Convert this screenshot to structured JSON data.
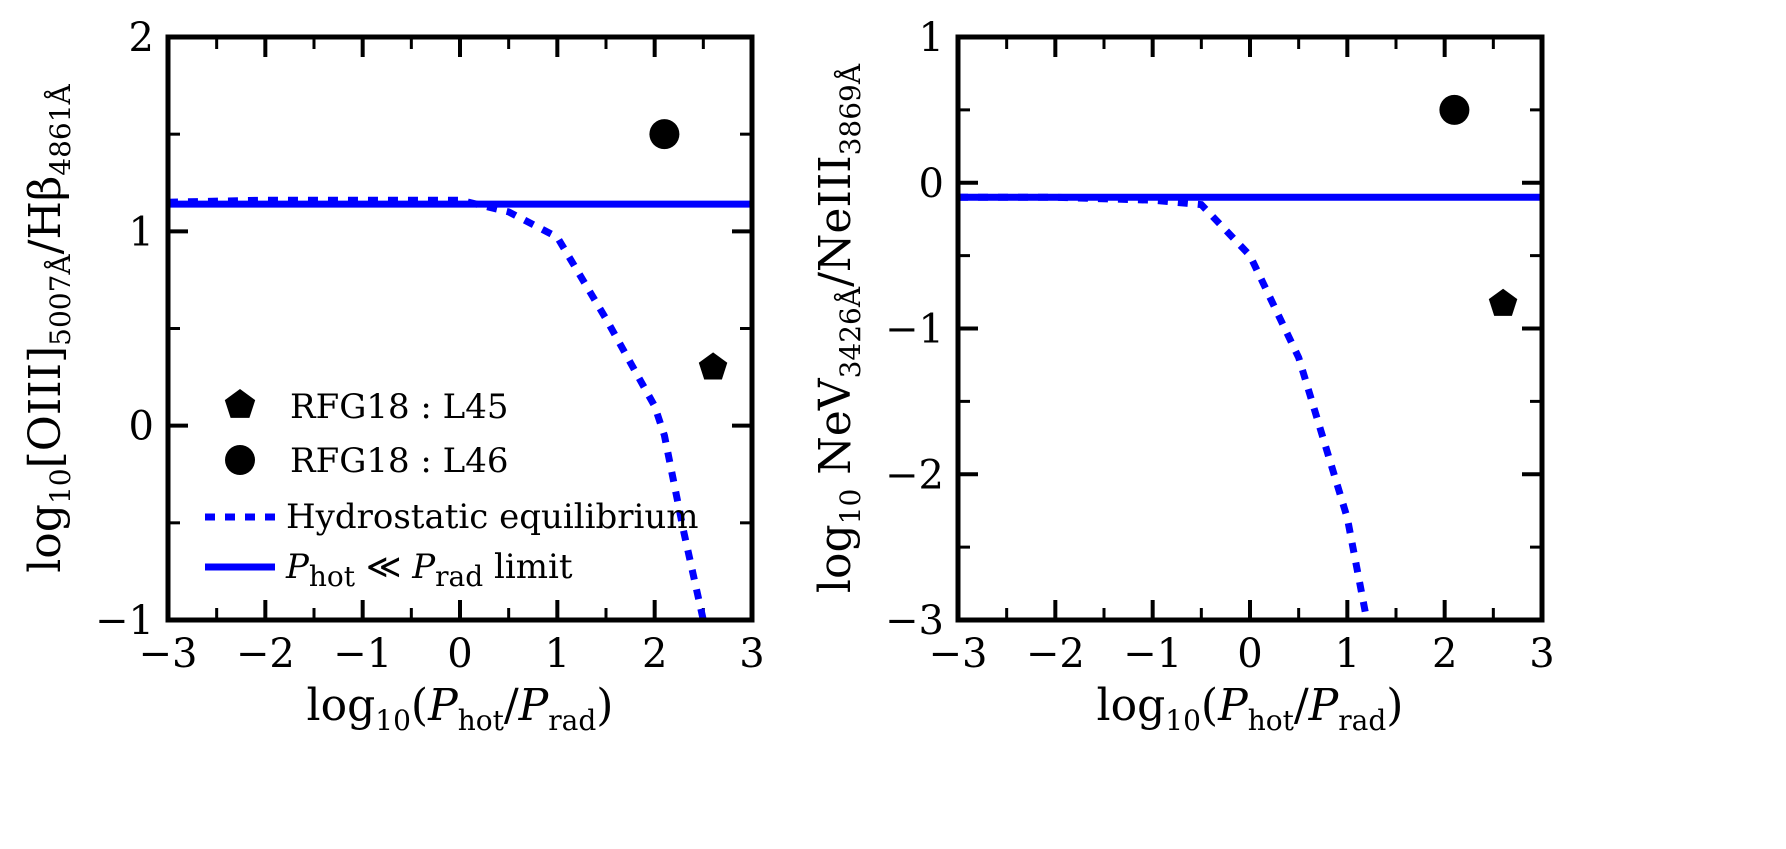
{
  "colors": {
    "line": "#0000ff",
    "marker": "#000000",
    "axis": "#000000"
  },
  "chart_data": [
    {
      "type": "line",
      "panel": "left",
      "xlabel": "log10(Phot/Prad)",
      "ylabel": "log10[OIII]5007Å/Hβ4861Å",
      "xlabel_parts": {
        "pre": "log",
        "pre_sub": "10",
        "open": "(",
        "p1": "P",
        "p1_sub": "hot",
        "slash": "/",
        "p2": "P",
        "p2_sub": "rad",
        "close": ")"
      },
      "ylabel_parts": {
        "pre": "log",
        "pre_sub": "10",
        "a": "[OIII]",
        "a_sub": "5007Å",
        "b": "/Hβ",
        "b_sub": "4861Å"
      },
      "xlim": [
        -3,
        3
      ],
      "ylim": [
        -1,
        2
      ],
      "xticks": [
        -3,
        -2,
        -1,
        0,
        1,
        2,
        3
      ],
      "xtick_labels": [
        "−3",
        "−2",
        "−1",
        "0",
        "1",
        "2",
        "3"
      ],
      "yticks": [
        -1,
        0,
        1,
        2
      ],
      "ytick_labels": [
        "−1",
        "0",
        "1",
        "2"
      ],
      "series": [
        {
          "name": "Hydrostatic equilibrium",
          "style": "dotted",
          "x": [
            -3,
            -2,
            -1,
            0,
            0.5,
            1,
            1.5,
            2,
            2.1,
            2.3,
            2.5
          ],
          "y": [
            1.15,
            1.16,
            1.16,
            1.16,
            1.1,
            0.97,
            0.55,
            0.1,
            -0.05,
            -0.55,
            -1.0
          ]
        },
        {
          "name": "Phot ≪ Prad limit",
          "style": "solid",
          "x": [
            -3,
            3
          ],
          "y": [
            1.14,
            1.14
          ]
        }
      ],
      "points": [
        {
          "name": "RFG18:L45",
          "marker": "pentagon",
          "x": 2.6,
          "y": 0.3
        },
        {
          "name": "RFG18:L46",
          "marker": "circle",
          "x": 2.1,
          "y": 1.5
        }
      ],
      "legend": {
        "position": "lower-left",
        "entries": [
          {
            "marker": "pentagon",
            "label": "RFG18 : L45"
          },
          {
            "marker": "circle",
            "label": "RFG18 : L46"
          },
          {
            "marker": "dotted-line",
            "label": "Hydrostatic equilibrium"
          },
          {
            "marker": "solid-line",
            "label_parts": {
              "p1": "P",
              "p1_sub": "hot",
              "op": " ≪ ",
              "p2": "P",
              "p2_sub": "rad",
              "tail": " limit"
            }
          }
        ]
      }
    },
    {
      "type": "line",
      "panel": "right",
      "xlabel": "log10(Phot/Prad)",
      "ylabel": "log10 NeV3426Å/NeIII3869Å",
      "xlabel_parts": {
        "pre": "log",
        "pre_sub": "10",
        "open": "(",
        "p1": "P",
        "p1_sub": "hot",
        "slash": "/",
        "p2": "P",
        "p2_sub": "rad",
        "close": ")"
      },
      "ylabel_parts": {
        "pre": "log",
        "pre_sub": "10",
        "a": " NeV",
        "a_sub": "3426Å",
        "b": "/NeIII",
        "b_sub": "3869Å"
      },
      "xlim": [
        -3,
        3
      ],
      "ylim": [
        -3,
        1
      ],
      "xticks": [
        -3,
        -2,
        -1,
        0,
        1,
        2,
        3
      ],
      "xtick_labels": [
        "−3",
        "−2",
        "−1",
        "0",
        "1",
        "2",
        "3"
      ],
      "yticks": [
        -3,
        -2,
        -1,
        0,
        1
      ],
      "ytick_labels": [
        "−3",
        "−2",
        "−1",
        "0",
        "1"
      ],
      "series": [
        {
          "name": "Hydrostatic equilibrium",
          "style": "dotted",
          "x": [
            -3,
            -2,
            -1,
            -0.5,
            0,
            0.5,
            1,
            1.2
          ],
          "y": [
            -0.1,
            -0.1,
            -0.12,
            -0.15,
            -0.5,
            -1.2,
            -2.3,
            -3.0
          ]
        },
        {
          "name": "Phot ≪ Prad limit",
          "style": "solid",
          "x": [
            -3,
            3
          ],
          "y": [
            -0.1,
            -0.1
          ]
        }
      ],
      "points": [
        {
          "name": "RFG18:L45",
          "marker": "pentagon",
          "x": 2.6,
          "y": -0.83
        },
        {
          "name": "RFG18:L46",
          "marker": "circle",
          "x": 2.1,
          "y": 0.5
        }
      ]
    }
  ]
}
